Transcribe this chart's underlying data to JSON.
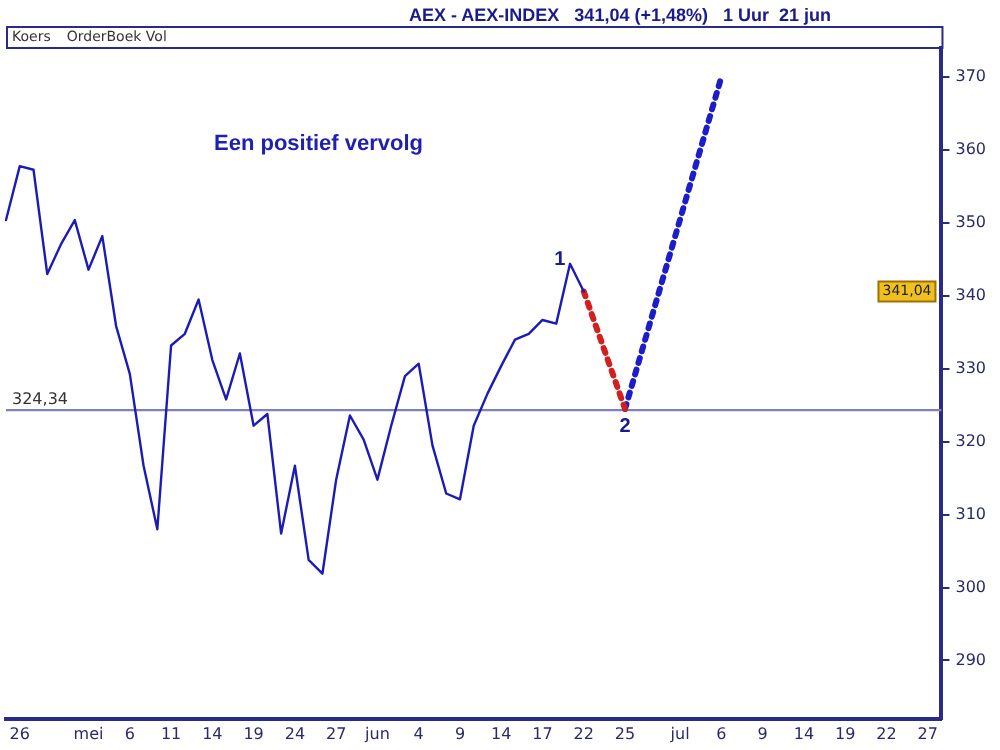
{
  "chart_data": {
    "type": "line",
    "title": "AEX - AEX-INDEX   341,04 (+1,48%)   1 Uur  21 jun",
    "annotations": [
      "Koers",
      "OrderBoek Vol",
      "Een positief vervolg",
      "1",
      "2",
      "341,04"
    ],
    "categories": [
      null,
      "26",
      null,
      null,
      null,
      null,
      "mei",
      null,
      null,
      "6",
      null,
      null,
      "11",
      null,
      null,
      "14",
      null,
      null,
      "19",
      null,
      null,
      "24",
      null,
      null,
      "27",
      null,
      null,
      "jun",
      null,
      null,
      "4",
      null,
      null,
      "9",
      null,
      null,
      "14",
      null,
      null,
      "17",
      null,
      null,
      "22",
      null,
      null,
      "25",
      null,
      null,
      null,
      "jul",
      null,
      null,
      "6",
      null,
      null,
      "9",
      null,
      null,
      "14",
      null,
      null,
      "19",
      null,
      null,
      "22",
      null,
      null,
      "27",
      null
    ],
    "series": [
      {
        "color": "#1c1cb4",
        "line_style": "solid",
        "values": [
          350.4,
          357.8,
          357.3,
          343,
          347.1,
          350.4,
          343.6,
          348.2,
          335.9,
          329.3,
          316.7,
          308,
          333.2,
          334.8,
          339.5,
          331.2,
          325.8,
          332.1,
          322.2,
          323.8,
          307.4,
          316.7,
          303.8,
          301.9,
          314.8,
          323.6,
          320.3,
          314.8,
          322.2,
          329,
          330.7,
          319.5,
          312.9,
          312.1,
          322.2,
          326.6,
          330.4,
          334,
          334.8,
          336.7,
          336.2,
          344.4,
          340.6,
          null,
          null,
          null,
          null,
          null,
          null,
          null,
          null,
          null,
          null,
          null,
          null,
          null,
          null,
          null,
          null,
          null,
          null,
          null,
          null,
          null,
          null,
          null,
          null,
          null,
          null
        ]
      },
      {
        "color": "#d02020",
        "line_style": "dotted",
        "values": [
          null,
          null,
          null,
          null,
          null,
          null,
          null,
          null,
          null,
          null,
          null,
          null,
          null,
          null,
          null,
          null,
          null,
          null,
          null,
          null,
          null,
          null,
          null,
          null,
          null,
          null,
          null,
          null,
          null,
          null,
          null,
          null,
          null,
          null,
          null,
          null,
          null,
          null,
          null,
          null,
          null,
          null,
          340.6,
          null,
          null,
          324.5,
          null,
          null,
          null,
          null,
          null,
          null,
          null,
          null,
          null,
          null,
          null,
          null,
          null,
          null,
          null,
          null,
          null,
          null,
          null,
          null,
          null,
          null,
          null
        ]
      },
      {
        "color": "#1c1cc8",
        "line_style": "dotted",
        "values": [
          null,
          null,
          null,
          null,
          null,
          null,
          null,
          null,
          null,
          null,
          null,
          null,
          null,
          null,
          null,
          null,
          null,
          null,
          null,
          null,
          null,
          null,
          null,
          null,
          null,
          null,
          null,
          null,
          null,
          null,
          null,
          null,
          null,
          null,
          null,
          null,
          null,
          null,
          null,
          null,
          null,
          null,
          null,
          null,
          null,
          324.5,
          null,
          null,
          null,
          null,
          null,
          null,
          370,
          null,
          null,
          null,
          null,
          null,
          null,
          null,
          null,
          null,
          null,
          null,
          null,
          null,
          null,
          null,
          null
        ]
      }
    ],
    "ylim": [
      282,
      374
    ],
    "yticks": [
      290,
      300,
      310,
      320,
      330,
      340,
      350,
      360,
      370
    ],
    "ref_lines": [
      {
        "axis": "y",
        "value": 324.34,
        "label": "324,34",
        "color": "#8080c0"
      }
    ],
    "grid": false,
    "legend": false,
    "marker": "none"
  }
}
